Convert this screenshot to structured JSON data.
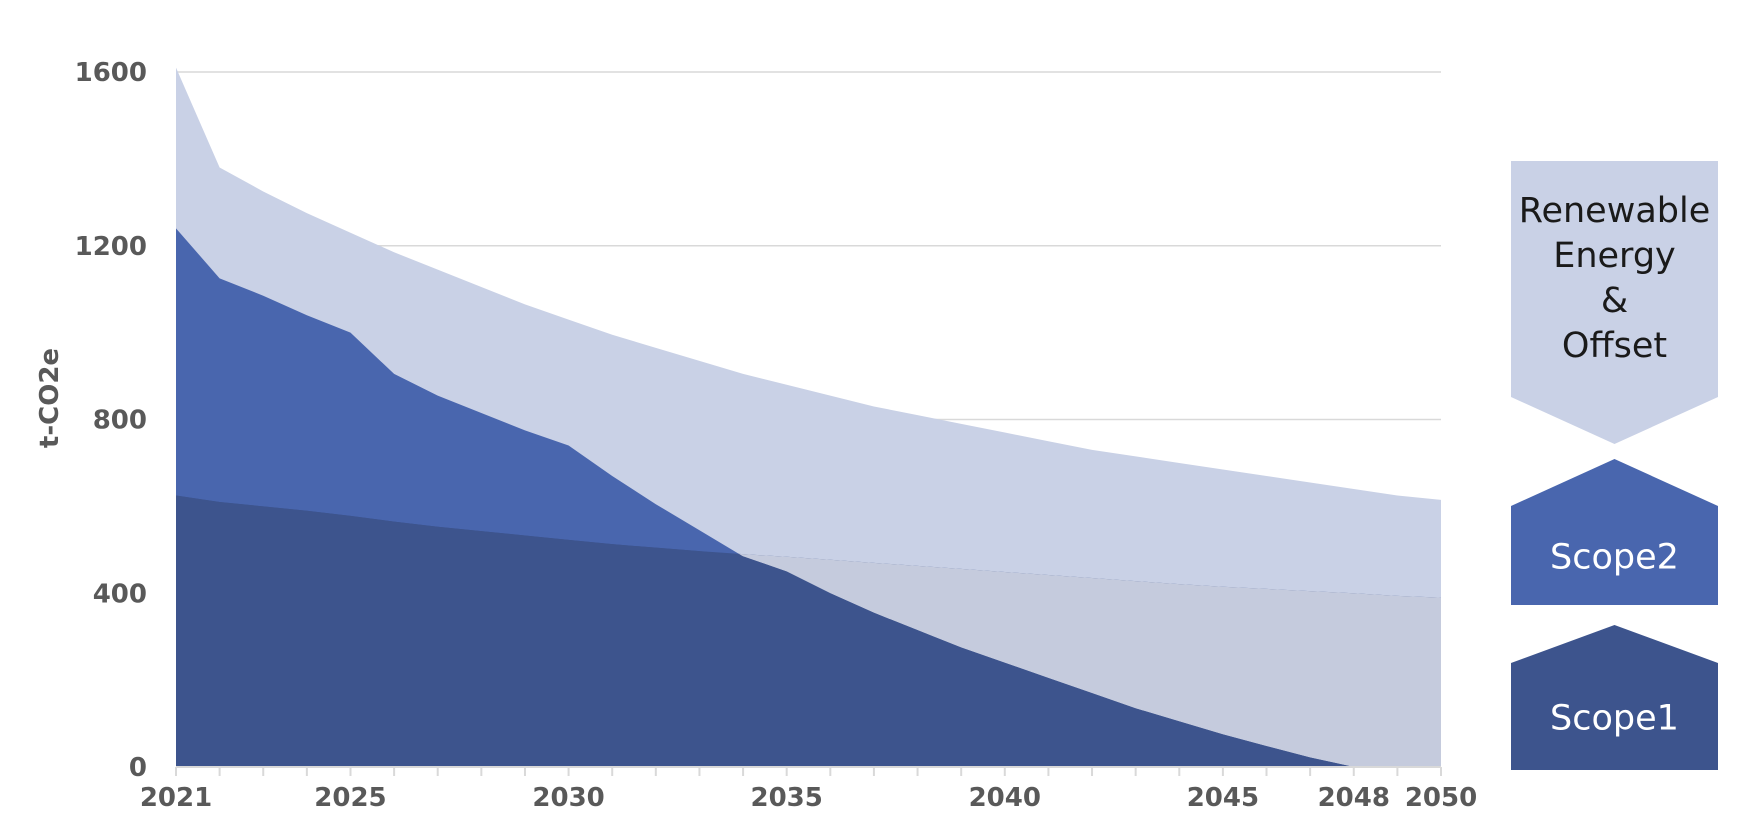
{
  "chart_data": {
    "type": "area",
    "ylabel": "t-CO2e",
    "ylim": [
      0,
      1600
    ],
    "xlim": [
      2021,
      2050
    ],
    "y_ticks": [
      0,
      400,
      800,
      1200,
      1600
    ],
    "x_tick_labels": [
      2021,
      2025,
      2030,
      2035,
      2040,
      2045,
      2048,
      2050
    ],
    "grid": true,
    "legend_placement": "right",
    "stacked": false,
    "series": [
      {
        "name": "Renewable Energy & Offset",
        "color": "#c9d1e6",
        "x": [
          2021,
          2022,
          2023,
          2024,
          2025,
          2026,
          2027,
          2028,
          2029,
          2030,
          2031,
          2032,
          2033,
          2034,
          2035,
          2036,
          2037,
          2038,
          2039,
          2040,
          2041,
          2042,
          2043,
          2044,
          2045,
          2046,
          2047,
          2048,
          2049,
          2050
        ],
        "values": [
          1610,
          1380,
          1325,
          1275,
          1230,
          1185,
          1145,
          1105,
          1065,
          1030,
          995,
          965,
          935,
          905,
          880,
          855,
          830,
          810,
          790,
          770,
          750,
          730,
          715,
          700,
          685,
          670,
          655,
          640,
          625,
          615
        ]
      },
      {
        "name": "Scope2",
        "color": "#4966ae",
        "x": [
          2021,
          2022,
          2023,
          2024,
          2025,
          2026,
          2027,
          2028,
          2029,
          2030,
          2031,
          2032,
          2033,
          2034,
          2035,
          2036,
          2037,
          2038,
          2039,
          2040,
          2041,
          2042,
          2043,
          2044,
          2045,
          2046,
          2047,
          2048,
          2049,
          2050
        ],
        "values": [
          1240,
          1125,
          1085,
          1040,
          1000,
          905,
          855,
          815,
          775,
          740,
          670,
          605,
          545,
          485,
          450,
          400,
          355,
          315,
          275,
          240,
          205,
          170,
          135,
          105,
          75,
          48,
          22,
          0,
          0,
          0
        ]
      },
      {
        "name": "Scope1",
        "color": "#3d548d",
        "x": [
          2021,
          2022,
          2023,
          2024,
          2025,
          2026,
          2027,
          2028,
          2029,
          2030,
          2031,
          2032,
          2033,
          2034,
          2035,
          2036,
          2037,
          2038,
          2039,
          2040,
          2041,
          2042,
          2043,
          2044,
          2045,
          2046,
          2047,
          2048,
          2049,
          2050
        ],
        "values": [
          625,
          610,
          600,
          590,
          578,
          565,
          553,
          543,
          533,
          523,
          513,
          505,
          497,
          490,
          484,
          477,
          470,
          463,
          456,
          449,
          442,
          435,
          428,
          421,
          415,
          410,
          405,
          400,
          394,
          390
        ]
      }
    ],
    "overlap_color": "#c5cbdd",
    "grid_color": "#d9d9d9",
    "axis_color": "#d9d9d9"
  },
  "legend": [
    {
      "key": "renewable",
      "shape": "chevron-down",
      "color": "#c9d1e6",
      "text_color": "#1a1a1a",
      "lines": [
        "Renewable",
        "Energy",
        "&",
        "Offset"
      ]
    },
    {
      "key": "scope2",
      "shape": "chevron-up",
      "color": "#4966ae",
      "text_color": "#ffffff",
      "lines": [
        "Scope2"
      ]
    },
    {
      "key": "scope1",
      "shape": "chevron-up",
      "color": "#3d548d",
      "text_color": "#ffffff",
      "lines": [
        "Scope1"
      ]
    }
  ]
}
